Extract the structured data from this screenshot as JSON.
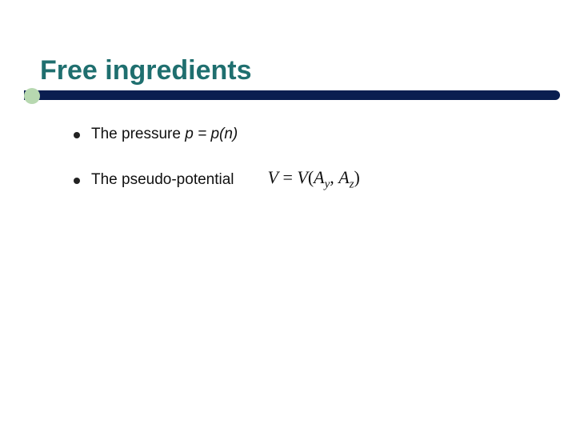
{
  "slide": {
    "title": "Free ingredients",
    "title_color": "#1f6f6f",
    "underline_bar_color": "#0a1e50",
    "underline_accent_color": "#b7d8b0",
    "background_color": "#ffffff",
    "bullets": [
      {
        "text_prefix": "The pressure ",
        "equation_plain": "p = p(n)",
        "has_formula_image": false
      },
      {
        "text_prefix": "The pseudo-potential",
        "has_formula_image": true,
        "formula": {
          "lhs": "V",
          "eq": "=",
          "func": "V",
          "open": "(",
          "arg1_base": "A",
          "arg1_sub": "y",
          "sep": ",",
          "arg2_base": "A",
          "arg2_sub": "z",
          "close": ")"
        }
      }
    ],
    "font_sizes": {
      "title": 34,
      "bullet": 19,
      "formula": 22
    }
  }
}
